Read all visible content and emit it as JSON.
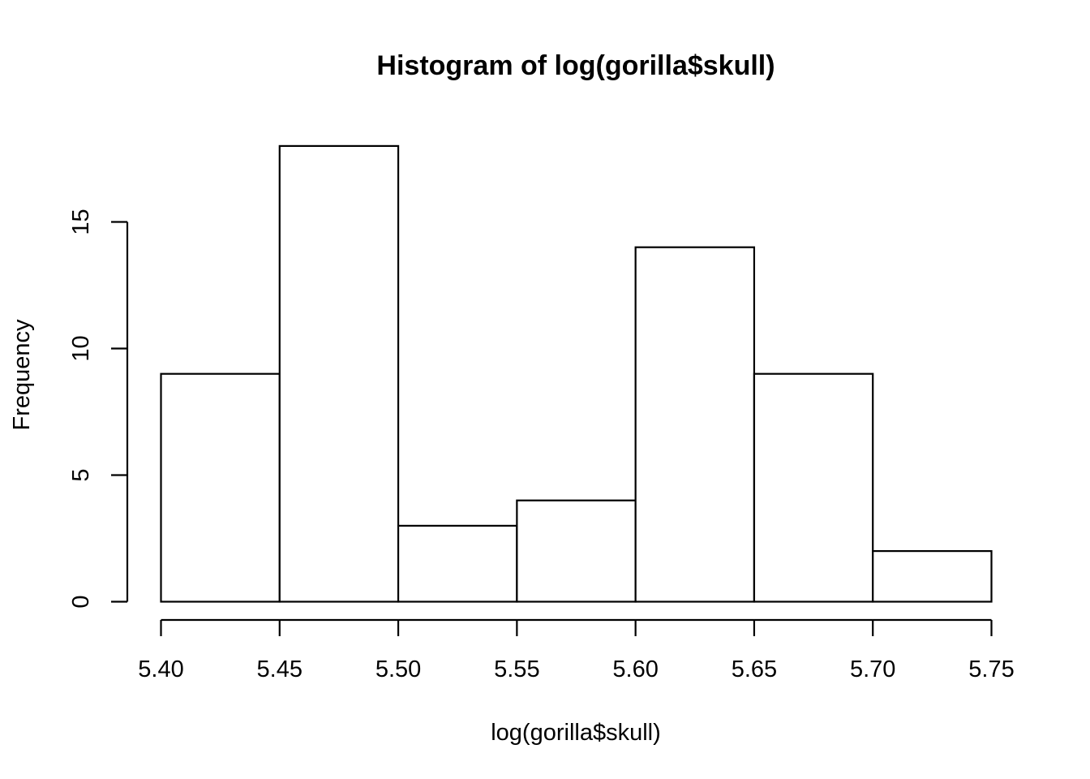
{
  "chart_data": {
    "type": "bar",
    "title": "Histogram of log(gorilla$skull)",
    "xlabel": "log(gorilla$skull)",
    "ylabel": "Frequency",
    "bins": [
      {
        "x0": 5.4,
        "x1": 5.45,
        "count": 9
      },
      {
        "x0": 5.45,
        "x1": 5.5,
        "count": 18
      },
      {
        "x0": 5.5,
        "x1": 5.55,
        "count": 3
      },
      {
        "x0": 5.55,
        "x1": 5.6,
        "count": 4
      },
      {
        "x0": 5.6,
        "x1": 5.65,
        "count": 14
      },
      {
        "x0": 5.65,
        "x1": 5.7,
        "count": 9
      },
      {
        "x0": 5.7,
        "x1": 5.75,
        "count": 2
      }
    ],
    "x_ticks": [
      "5.40",
      "5.45",
      "5.50",
      "5.55",
      "5.60",
      "5.65",
      "5.70",
      "5.75"
    ],
    "y_ticks": [
      "0",
      "5",
      "10",
      "15"
    ],
    "xlim": [
      5.4,
      5.75
    ],
    "ylim": [
      0,
      18
    ],
    "grid": false,
    "bar_fill": "#ffffff",
    "bar_stroke": "#000000"
  }
}
